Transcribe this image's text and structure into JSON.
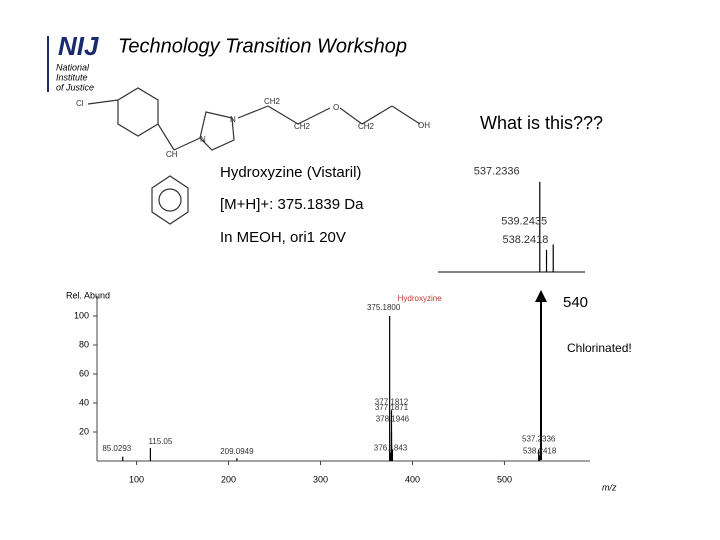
{
  "header": {
    "title": "Technology Transition Workshop",
    "logo": "NIJ",
    "logo_lines": [
      "National",
      "Institute",
      "of Justice"
    ]
  },
  "question": "What is this???",
  "notes": [
    "Hydroxyzine (Vistaril)",
    "[M+H]+:  375.1839 Da",
    "In MEOH, ori1 20V"
  ],
  "callout": "540",
  "remark": "Chlorinated!",
  "structure_labels": [
    "Cl",
    "N",
    "N",
    "CH2",
    "CH2",
    "O",
    "CH2",
    "OH",
    "CH"
  ],
  "chart_data": [
    {
      "type": "bar",
      "y_label": "Rel. Abund",
      "x_label": "m/z",
      "annotation": "Hydroxyzine",
      "x": [
        85.0293,
        115.05,
        209.0949,
        375.18,
        376.1843,
        377.1812,
        377.1871,
        378.1946,
        537.2336,
        538.2418
      ],
      "x_labels": [
        "85.0293",
        "115.05",
        "209.0949",
        "375.1800",
        "376.1843",
        "377.1812",
        "377.1871",
        "378.1946",
        "537.2336",
        "538.2418"
      ],
      "values": [
        3,
        9,
        2,
        100,
        6,
        35,
        20,
        8,
        8,
        4
      ],
      "color": "#000000",
      "xlim": [
        57,
        593
      ],
      "ylim": [
        0,
        100
      ],
      "xticks": [
        100,
        200,
        300,
        400,
        500
      ],
      "yticks": [
        20,
        40,
        60,
        80,
        100
      ]
    },
    {
      "type": "bar",
      "x": [
        537.2336,
        538.2418,
        539.2435
      ],
      "x_labels": [
        "537.2336",
        "538.2418",
        "539.2435"
      ],
      "values": [
        98,
        24,
        30
      ],
      "color": "#000000",
      "xlim": [
        522,
        544
      ],
      "ylim": [
        0,
        100
      ]
    }
  ]
}
